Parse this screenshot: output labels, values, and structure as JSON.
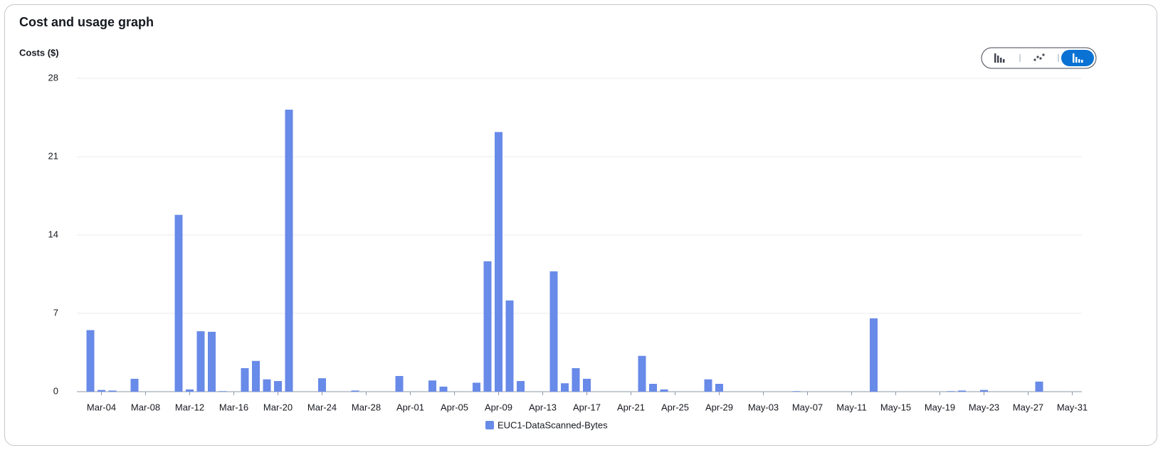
{
  "chart_data": {
    "type": "bar",
    "title": "Cost and usage graph",
    "y_label": "Costs ($)",
    "categories": [
      null,
      "Mar-04",
      null,
      null,
      null,
      "Mar-08",
      null,
      null,
      null,
      "Mar-12",
      null,
      null,
      null,
      "Mar-16",
      null,
      null,
      null,
      "Mar-20",
      null,
      null,
      null,
      "Mar-24",
      null,
      null,
      null,
      "Mar-28",
      null,
      null,
      null,
      "Apr-01",
      null,
      null,
      null,
      "Apr-05",
      null,
      null,
      null,
      "Apr-09",
      null,
      null,
      null,
      "Apr-13",
      null,
      null,
      null,
      "Apr-17",
      null,
      null,
      null,
      "Apr-21",
      null,
      null,
      null,
      "Apr-25",
      null,
      null,
      null,
      "Apr-29",
      null,
      null,
      null,
      "May-03",
      null,
      null,
      null,
      "May-07",
      null,
      null,
      null,
      "May-11",
      null,
      null,
      null,
      "May-15",
      null,
      null,
      null,
      "May-19",
      null,
      null,
      null,
      "May-23",
      null,
      null,
      null,
      "May-27",
      null,
      null,
      null,
      "May-31"
    ],
    "series": [
      {
        "name": "EUC1-DataScanned-Bytes",
        "color": "#688ae8",
        "values": [
          5.5,
          0.15,
          0.1,
          0,
          1.15,
          0,
          0,
          0,
          15.8,
          0.2,
          5.4,
          5.35,
          0.05,
          0,
          2.1,
          2.75,
          1.1,
          0.95,
          25.2,
          0,
          0,
          1.2,
          0,
          0,
          0.1,
          0,
          0,
          0,
          1.4,
          0,
          0,
          1.0,
          0.45,
          0,
          0,
          0.8,
          11.65,
          23.2,
          8.15,
          0.95,
          0,
          0,
          10.75,
          0.75,
          2.1,
          1.15,
          0,
          0,
          0,
          0,
          3.2,
          0.7,
          0.2,
          0,
          0,
          0,
          1.1,
          0.7,
          0,
          0,
          0,
          0,
          0,
          0,
          0.05,
          0,
          0,
          0,
          0,
          0,
          0,
          6.55,
          0,
          0,
          0,
          0,
          0,
          0,
          0.05,
          0.1,
          0,
          0.15,
          0,
          0,
          0,
          0,
          0.9,
          0,
          0,
          0
        ]
      }
    ],
    "ylim": [
      0,
      28
    ],
    "yticks": [
      0,
      7,
      14,
      21,
      28
    ],
    "grid": true
  }
}
